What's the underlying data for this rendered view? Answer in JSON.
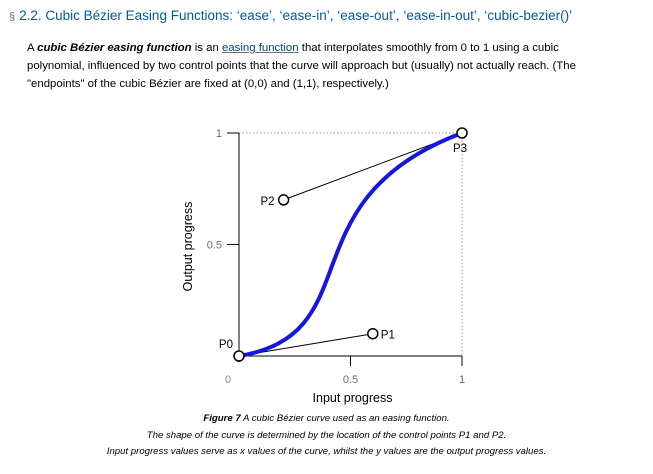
{
  "heading": {
    "section_symbol": "§",
    "text": "2.2. Cubic Bézier Easing Functions: ‘ease’, ‘ease-in’, ‘ease-out’, ‘ease-in-out’, ‘cubic-bezier()’"
  },
  "paragraph": {
    "part1": "A ",
    "term": "cubic Bézier easing function",
    "part2": " is an ",
    "link": "easing function",
    "part3": " that interpolates smoothly from 0 to 1 using a cubic polynomial, influenced by two control points that the curve will approach but (usually) not actually reach. (The \"endpoints\" of the cubic Bézier are fixed at (0,0) and (1,1), respectively.)"
  },
  "chart_data": {
    "type": "line",
    "xlabel": "Input progress",
    "ylabel": "Output progress",
    "xlim": [
      0,
      1
    ],
    "ylim": [
      0,
      1
    ],
    "x_ticks": [
      {
        "value": 0,
        "label": "0"
      },
      {
        "value": 0.5,
        "label": "0.5"
      },
      {
        "value": 1,
        "label": "1"
      }
    ],
    "y_ticks": [
      {
        "value": 0.5,
        "label": "0.5"
      },
      {
        "value": 1,
        "label": "1"
      }
    ],
    "control_points": [
      {
        "label": "P0",
        "x": 0,
        "y": 0
      },
      {
        "label": "P1",
        "x": 0.6,
        "y": 0.1
      },
      {
        "label": "P2",
        "x": 0.2,
        "y": 0.7
      },
      {
        "label": "P3",
        "x": 1,
        "y": 1
      }
    ],
    "curve_color": "#1515e0"
  },
  "caption": {
    "figure_label": "Figure 7",
    "line1": " A cubic Bézier curve used as an easing function.",
    "line2": "The shape of the curve is determined by the location of the control points P1 and P2.",
    "line3": "Input progress values serve as x values of the curve, whilst the y values are the output progress values."
  }
}
